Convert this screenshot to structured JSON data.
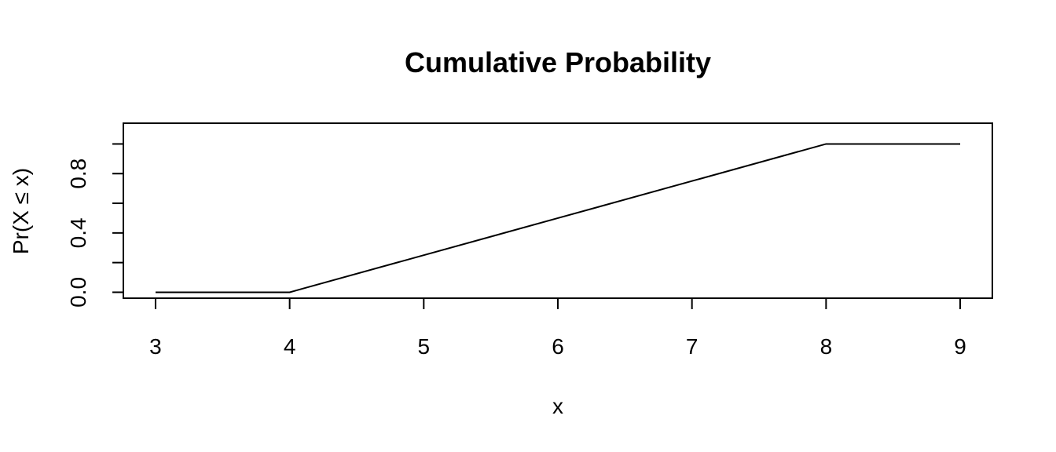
{
  "chart_data": {
    "type": "line",
    "title": "Cumulative Probability",
    "xlabel": "x",
    "ylabel": "Pr(X ≤ x)",
    "xlim": [
      2.76,
      9.24
    ],
    "ylim": [
      -0.04,
      1.14
    ],
    "x_ticks": [
      3,
      4,
      5,
      6,
      7,
      8,
      9
    ],
    "x_tick_labels": [
      "3",
      "4",
      "5",
      "6",
      "7",
      "8",
      "9"
    ],
    "y_ticks": [
      0.0,
      0.2,
      0.4,
      0.6,
      0.8,
      1.0
    ],
    "y_tick_labels": [
      "0.0",
      "",
      "0.4",
      "",
      "0.8",
      ""
    ],
    "grid": false,
    "legend": "none",
    "series": [
      {
        "x": [
          3,
          4,
          5,
          6,
          7,
          8,
          9
        ],
        "values": [
          0.0,
          0.0,
          0.25,
          0.5,
          0.75,
          1.0,
          1.0
        ],
        "color": "#000000"
      }
    ]
  }
}
